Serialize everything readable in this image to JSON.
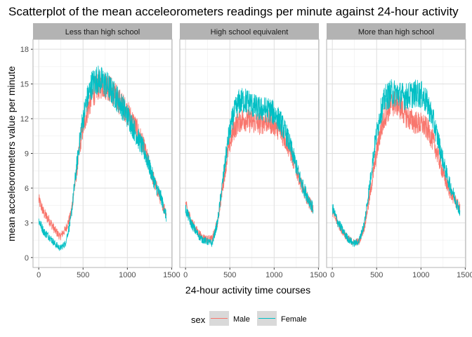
{
  "chart_data": {
    "type": "line",
    "title": "Scatterplot of  the mean acceleorometers readings per minute against 24-hour activity",
    "xlabel": "24-hour activity time courses",
    "ylabel": "mean acceleorometers value per minute",
    "xlim": [
      0,
      1440
    ],
    "ylim": [
      0,
      18
    ],
    "x_ticks": [
      0,
      500,
      1000,
      1500
    ],
    "y_ticks": [
      0,
      3,
      6,
      9,
      12,
      15,
      18
    ],
    "grid": true,
    "legend_position": "bottom",
    "legend": {
      "title": "sex",
      "entries": [
        {
          "name": "Male",
          "color": "#F8766D"
        },
        {
          "name": "Female",
          "color": "#00BFC4"
        }
      ]
    },
    "x_key": [
      0,
      60,
      120,
      180,
      240,
      300,
      360,
      420,
      480,
      540,
      600,
      660,
      720,
      780,
      840,
      900,
      960,
      1020,
      1080,
      1140,
      1200,
      1260,
      1320,
      1380,
      1440
    ],
    "panels": [
      {
        "label": "Less than high school",
        "series": [
          {
            "name": "Male",
            "color": "#F8766D",
            "values": [
              5.0,
              3.8,
              3.2,
              2.4,
              1.8,
              2.4,
              3.6,
              7.0,
              10.5,
              12.5,
              14.0,
              14.8,
              15.0,
              14.8,
              14.2,
              13.6,
              13.0,
              12.3,
              11.5,
              10.5,
              9.2,
              7.6,
              6.2,
              5.0,
              3.8
            ]
          },
          {
            "name": "Female",
            "color": "#00BFC4",
            "values": [
              3.2,
              2.2,
              1.8,
              1.2,
              0.8,
              1.2,
              3.2,
              7.4,
              11.2,
              13.5,
              15.0,
              15.4,
              15.2,
              14.8,
              14.2,
              13.6,
              12.8,
              12.0,
              11.0,
              10.0,
              9.0,
              7.6,
              6.2,
              5.2,
              3.5
            ]
          }
        ]
      },
      {
        "label": "High school equivalent",
        "series": [
          {
            "name": "Male",
            "color": "#F8766D",
            "values": [
              4.6,
              3.2,
              2.4,
              1.8,
              1.6,
              1.6,
              3.0,
              6.2,
              9.2,
              11.0,
              11.8,
              12.0,
              11.8,
              11.7,
              11.6,
              11.8,
              11.7,
              11.4,
              10.8,
              10.0,
              8.8,
              7.4,
              6.0,
              5.0,
              4.2
            ]
          },
          {
            "name": "Female",
            "color": "#00BFC4",
            "values": [
              4.2,
              3.0,
              2.2,
              1.6,
              1.4,
              1.2,
              3.0,
              6.6,
              10.2,
              12.3,
              13.4,
              13.6,
              13.4,
              13.0,
              12.8,
              12.8,
              12.7,
              12.3,
              11.6,
              10.6,
              9.2,
              7.6,
              6.2,
              5.2,
              4.2
            ]
          }
        ]
      },
      {
        "label": "More than high school",
        "series": [
          {
            "name": "Male",
            "color": "#F8766D",
            "values": [
              4.0,
              3.0,
              2.2,
              1.6,
              1.3,
              1.4,
              2.6,
              5.2,
              8.2,
              10.8,
              12.4,
              13.2,
              13.4,
              12.9,
              12.2,
              11.8,
              11.6,
              11.5,
              11.0,
              10.0,
              8.6,
              7.0,
              5.8,
              5.0,
              4.2
            ]
          },
          {
            "name": "Female",
            "color": "#00BFC4",
            "values": [
              4.3,
              3.1,
              2.3,
              1.6,
              1.2,
              1.4,
              2.9,
              6.2,
              9.8,
              12.5,
              13.8,
              14.2,
              14.2,
              14.0,
              13.9,
              14.1,
              14.2,
              14.0,
              13.2,
              11.8,
              10.0,
              8.0,
              6.4,
              5.2,
              4.0
            ]
          }
        ]
      }
    ]
  }
}
